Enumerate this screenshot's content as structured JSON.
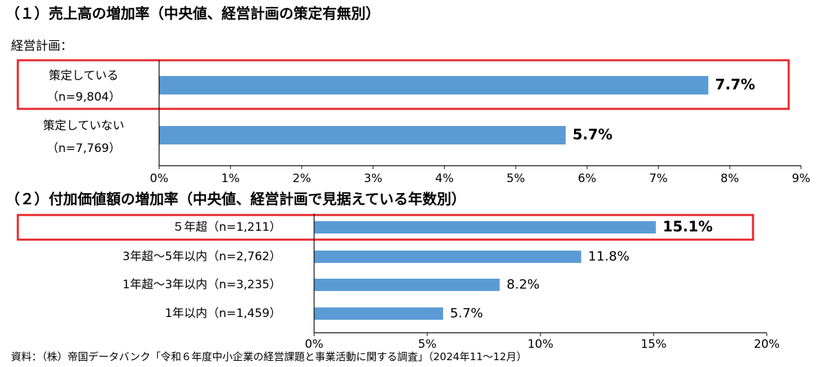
{
  "chart_data": [
    {
      "type": "bar",
      "orientation": "horizontal",
      "title": "（１）売上高の増加率（中央値、経営計画の策定有無別）",
      "subtitle": "経営計画：",
      "categories": [
        {
          "label": "策定している",
          "n": "（n=9,804）"
        },
        {
          "label": "策定していない",
          "n": "（n=7,769）"
        }
      ],
      "values": [
        7.7,
        5.7
      ],
      "value_labels": [
        "7.7%",
        "5.7%"
      ],
      "highlight": [
        true,
        false
      ],
      "bold_labels": [
        true,
        true
      ],
      "xlim": [
        0,
        9
      ],
      "ticks": [
        "0%",
        "1%",
        "2%",
        "3%",
        "4%",
        "5%",
        "6%",
        "7%",
        "8%",
        "9%"
      ],
      "bar_color": "#5B9BD5",
      "highlight_color": "#E8262B",
      "grid": false
    },
    {
      "type": "bar",
      "orientation": "horizontal",
      "title": "（２）付加価値額の増加率（中央値、経営計画で見据えている年数別）",
      "categories": [
        {
          "label": "５年超（n=1,211）"
        },
        {
          "label": "3年超～5年以内（n=2,762）"
        },
        {
          "label": "1年超～3年以内（n=3,235）"
        },
        {
          "label": "1年以内（n=1,459）"
        }
      ],
      "values": [
        15.1,
        11.8,
        8.2,
        5.7
      ],
      "value_labels": [
        "15.1%",
        "11.8%",
        "8.2%",
        "5.7%"
      ],
      "highlight": [
        true,
        false,
        false,
        false
      ],
      "bold_labels": [
        true,
        false,
        false,
        false
      ],
      "xlim": [
        0,
        20
      ],
      "ticks": [
        "0%",
        "5%",
        "10%",
        "15%",
        "20%"
      ],
      "bar_color": "#5B9BD5",
      "highlight_color": "#E8262B",
      "grid": false
    }
  ],
  "source_note": "資料：（株）帝国データバンク「令和６年度中小企業の経営課題と事業活動に関する調査」（2024年11～12月）"
}
